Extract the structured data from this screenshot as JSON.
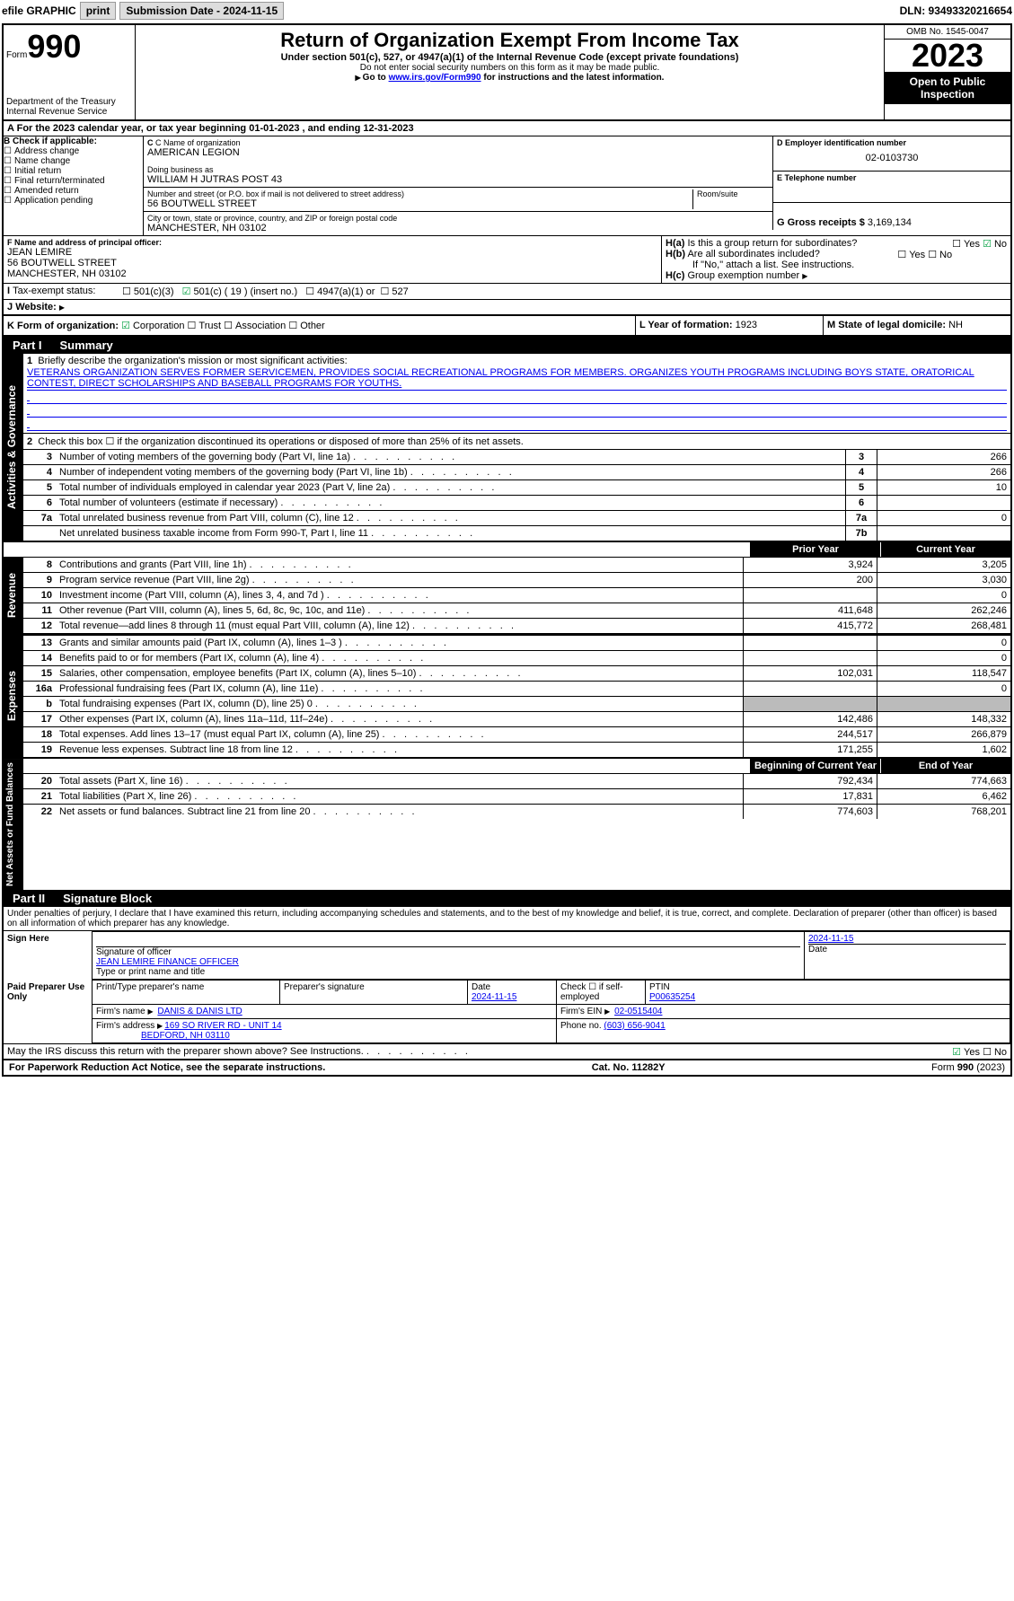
{
  "top": {
    "efile": "efile GRAPHIC",
    "print": "print",
    "sub_lbl": "Submission Date - ",
    "sub_date": "2024-11-15",
    "dln": "DLN: 93493320216654"
  },
  "hdr": {
    "form": "Form",
    "990": "990",
    "dept": "Department of the Treasury",
    "irs": "Internal Revenue Service",
    "title": "Return of Organization Exempt From Income Tax",
    "sub": "Under section 501(c), 527, or 4947(a)(1) of the Internal Revenue Code (except private foundations)",
    "ssn": "Do not enter social security numbers on this form as it may be made public.",
    "goto": "Go to ",
    "link": "www.irs.gov/Form990",
    "goto2": " for instructions and the latest information.",
    "omb": "OMB No. 1545-0047",
    "year": "2023",
    "open": "Open to Public Inspection"
  },
  "a": {
    "text": "For the 2023 calendar year, or tax year beginning ",
    "beg": "01-01-2023",
    "mid": " , and ending ",
    "end": "12-31-2023"
  },
  "b": {
    "lbl": "B Check if applicable:",
    "items": [
      "Address change",
      "Name change",
      "Initial return",
      "Final return/terminated",
      "Amended return",
      "Application pending"
    ]
  },
  "c": {
    "lbl": "C Name of organization",
    "name": "AMERICAN LEGION",
    "dba_lbl": "Doing business as",
    "dba": "WILLIAM H JUTRAS POST 43",
    "addr_lbl": "Number and street (or P.O. box if mail is not delivered to street address)",
    "room_lbl": "Room/suite",
    "addr": "56 BOUTWELL STREET",
    "city_lbl": "City or town, state or province, country, and ZIP or foreign postal code",
    "city": "MANCHESTER, NH  03102"
  },
  "d": {
    "lbl": "D Employer identification number",
    "val": "02-0103730"
  },
  "e": {
    "lbl": "E Telephone number",
    "val": ""
  },
  "g": {
    "lbl": "G Gross receipts $",
    "val": "3,169,134"
  },
  "f": {
    "lbl": "F  Name and address of principal officer:",
    "name": "JEAN LEMIRE",
    "addr1": "56 BOUTWELL STREET",
    "addr2": "MANCHESTER, NH  03102"
  },
  "h": {
    "a": "Is this a group return for subordinates?",
    "b": "Are all subordinates included?",
    "ifno": "If \"No,\" attach a list. See instructions.",
    "c": "Group exemption number"
  },
  "i": {
    "lbl": "Tax-exempt status:",
    "o1": "501(c)(3)",
    "o2": "501(c) (",
    "o2b": "19",
    "o2c": ") (insert no.)",
    "o3": "4947(a)(1) or",
    "o4": "527"
  },
  "j": {
    "lbl": "Website:",
    "val": ""
  },
  "k": {
    "lbl": "K Form of organization:",
    "o1": "Corporation",
    "o2": "Trust",
    "o3": "Association",
    "o4": "Other"
  },
  "l": {
    "lbl": "L Year of formation:",
    "val": "1923"
  },
  "m": {
    "lbl": "M State of legal domicile:",
    "val": "NH"
  },
  "p1": {
    "lbl": "Part I",
    "title": "Summary"
  },
  "q1": {
    "lbl": "Briefly describe the organization's mission or most significant activities:",
    "text": "VETERANS ORGANIZATION SERVES FORMER SERVICEMEN, PROVIDES SOCIAL RECREATIONAL PROGRAMS FOR MEMBERS. ORGANIZES YOUTH PROGRAMS INCLUDING BOYS STATE, ORATORICAL CONTEST, DIRECT SCHOLARSHIPS AND BASEBALL PROGRAMS FOR YOUTHS."
  },
  "q2": "Check this box ☐ if the organization discontinued its operations or disposed of more than 25% of its net assets.",
  "agov": "Activities & Governance",
  "rev": "Revenue",
  "exp": "Expenses",
  "nab": "Net Assets or Fund Balances",
  "lines_top": [
    {
      "n": "3",
      "d": "Number of voting members of the governing body (Part VI, line 1a)",
      "c": "3",
      "v": "266"
    },
    {
      "n": "4",
      "d": "Number of independent voting members of the governing body (Part VI, line 1b)",
      "c": "4",
      "v": "266"
    },
    {
      "n": "5",
      "d": "Total number of individuals employed in calendar year 2023 (Part V, line 2a)",
      "c": "5",
      "v": "10"
    },
    {
      "n": "6",
      "d": "Total number of volunteers (estimate if necessary)",
      "c": "6",
      "v": ""
    },
    {
      "n": "7a",
      "d": "Total unrelated business revenue from Part VIII, column (C), line 12",
      "c": "7a",
      "v": "0"
    },
    {
      "n": "",
      "d": "Net unrelated business taxable income from Form 990-T, Part I, line 11",
      "c": "7b",
      "v": ""
    }
  ],
  "col_py": "Prior Year",
  "col_cy": "Current Year",
  "rev_lines": [
    {
      "n": "8",
      "d": "Contributions and grants (Part VIII, line 1h)",
      "py": "3,924",
      "cy": "3,205"
    },
    {
      "n": "9",
      "d": "Program service revenue (Part VIII, line 2g)",
      "py": "200",
      "cy": "3,030"
    },
    {
      "n": "10",
      "d": "Investment income (Part VIII, column (A), lines 3, 4, and 7d )",
      "py": "",
      "cy": "0"
    },
    {
      "n": "11",
      "d": "Other revenue (Part VIII, column (A), lines 5, 6d, 8c, 9c, 10c, and 11e)",
      "py": "411,648",
      "cy": "262,246"
    },
    {
      "n": "12",
      "d": "Total revenue—add lines 8 through 11 (must equal Part VIII, column (A), line 12)",
      "py": "415,772",
      "cy": "268,481"
    }
  ],
  "exp_lines": [
    {
      "n": "13",
      "d": "Grants and similar amounts paid (Part IX, column (A), lines 1–3 )",
      "py": "",
      "cy": "0"
    },
    {
      "n": "14",
      "d": "Benefits paid to or for members (Part IX, column (A), line 4)",
      "py": "",
      "cy": "0"
    },
    {
      "n": "15",
      "d": "Salaries, other compensation, employee benefits (Part IX, column (A), lines 5–10)",
      "py": "102,031",
      "cy": "118,547"
    },
    {
      "n": "16a",
      "d": "Professional fundraising fees (Part IX, column (A), line 11e)",
      "py": "",
      "cy": "0"
    },
    {
      "n": "b",
      "d": "Total fundraising expenses (Part IX, column (D), line 25) 0",
      "py": "GRAY",
      "cy": "GRAY"
    },
    {
      "n": "17",
      "d": "Other expenses (Part IX, column (A), lines 11a–11d, 11f–24e)",
      "py": "142,486",
      "cy": "148,332"
    },
    {
      "n": "18",
      "d": "Total expenses. Add lines 13–17 (must equal Part IX, column (A), line 25)",
      "py": "244,517",
      "cy": "266,879"
    },
    {
      "n": "19",
      "d": "Revenue less expenses. Subtract line 18 from line 12",
      "py": "171,255",
      "cy": "1,602"
    }
  ],
  "col_by": "Beginning of Current Year",
  "col_ey": "End of Year",
  "na_lines": [
    {
      "n": "20",
      "d": "Total assets (Part X, line 16)",
      "py": "792,434",
      "cy": "774,663"
    },
    {
      "n": "21",
      "d": "Total liabilities (Part X, line 26)",
      "py": "17,831",
      "cy": "6,462"
    },
    {
      "n": "22",
      "d": "Net assets or fund balances. Subtract line 21 from line 20",
      "py": "774,603",
      "cy": "768,201"
    }
  ],
  "p2": {
    "lbl": "Part II",
    "title": "Signature Block"
  },
  "penalty": "Under penalties of perjury, I declare that I have examined this return, including accompanying schedules and statements, and to the best of my knowledge and belief, it is true, correct, and complete. Declaration of preparer (other than officer) is based on all information of which preparer has any knowledge.",
  "sign": {
    "here": "Sign Here",
    "sig_lbl": "Signature of officer",
    "officer": "JEAN LEMIRE  FINANCE OFFICER",
    "type_lbl": "Type or print name and title",
    "date": "2024-11-15",
    "date_lbl": "Date"
  },
  "paid": {
    "side": "Paid Preparer Use Only",
    "name_lbl": "Print/Type preparer's name",
    "sig_lbl": "Preparer's signature",
    "date_lbl": "Date",
    "date": "2024-11-15",
    "chk_lbl": "Check ☐ if self-employed",
    "ptin_lbl": "PTIN",
    "ptin": "P00635254",
    "firm_lbl": "Firm's name",
    "firm": "DANIS & DANIS LTD",
    "ein_lbl": "Firm's EIN",
    "ein": "02-0515404",
    "addr_lbl": "Firm's address",
    "addr": "169 SO RIVER RD - UNIT 14",
    "addr2": "BEDFORD, NH  03110",
    "ph_lbl": "Phone no.",
    "ph": "(603) 656-9041"
  },
  "discuss": "May the IRS discuss this return with the preparer shown above? See Instructions.",
  "yes": "Yes",
  "no": "No",
  "footer": {
    "l": "For Paperwork Reduction Act Notice, see the separate instructions.",
    "c": "Cat. No. 11282Y",
    "r": "Form 990 (2023)"
  }
}
